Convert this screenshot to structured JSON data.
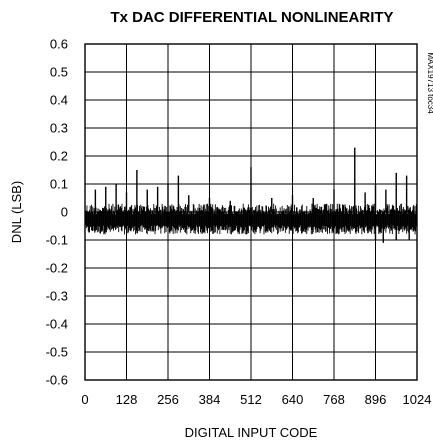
{
  "chart_data": {
    "type": "line",
    "title": "Tx DAC DIFFERENTIAL NONLINEARITY",
    "xlabel": "DIGITAL INPUT CODE",
    "ylabel": "DNL (LSB)",
    "figure_id": "MAX19713 toc34",
    "xlim": [
      0,
      1024
    ],
    "ylim": [
      -0.6,
      0.6
    ],
    "x_ticks": [
      0,
      128,
      256,
      384,
      512,
      640,
      768,
      896,
      1024
    ],
    "x_tick_labels": [
      "0",
      "128",
      "256",
      "384",
      "512",
      "640",
      "768",
      "896",
      "1024"
    ],
    "y_ticks": [
      0.6,
      0.5,
      0.4,
      0.3,
      0.2,
      0.1,
      0,
      -0.1,
      -0.2,
      -0.3,
      -0.4,
      -0.5,
      -0.6
    ],
    "y_tick_labels": [
      "0.6",
      "0.5",
      "0.4",
      "0.3",
      "0.2",
      "0.1",
      "0",
      "-0.1",
      "-0.2",
      "-0.3",
      "-0.4",
      "-0.5",
      "-0.6"
    ],
    "grid": true,
    "series_color": "#000000",
    "series": [
      {
        "band_min": -0.08,
        "band_max": 0.03,
        "spikes": [
          {
            "x": 32,
            "y": 0.08
          },
          {
            "x": 64,
            "y": 0.09
          },
          {
            "x": 96,
            "y": 0.1
          },
          {
            "x": 128,
            "y": 0.07
          },
          {
            "x": 160,
            "y": 0.15
          },
          {
            "x": 192,
            "y": 0.08
          },
          {
            "x": 224,
            "y": 0.09
          },
          {
            "x": 256,
            "y": 0.1
          },
          {
            "x": 288,
            "y": 0.13
          },
          {
            "x": 320,
            "y": 0.06
          },
          {
            "x": 384,
            "y": 0.05
          },
          {
            "x": 448,
            "y": 0.04
          },
          {
            "x": 512,
            "y": 0.16
          },
          {
            "x": 576,
            "y": 0.05
          },
          {
            "x": 640,
            "y": 0.06
          },
          {
            "x": 704,
            "y": 0.05
          },
          {
            "x": 768,
            "y": 0.08
          },
          {
            "x": 832,
            "y": 0.23
          },
          {
            "x": 864,
            "y": 0.07
          },
          {
            "x": 896,
            "y": 0.1
          },
          {
            "x": 928,
            "y": 0.08
          },
          {
            "x": 960,
            "y": 0.14
          },
          {
            "x": 992,
            "y": 0.13
          }
        ],
        "dips": [
          {
            "x": 896,
            "y": -0.1
          },
          {
            "x": 920,
            "y": -0.11
          },
          {
            "x": 960,
            "y": -0.1
          },
          {
            "x": 1000,
            "y": -0.1
          }
        ]
      }
    ]
  }
}
